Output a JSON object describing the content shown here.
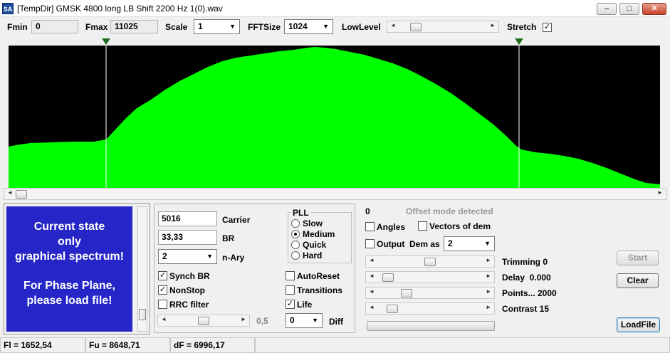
{
  "window": {
    "app_icon": "SA",
    "title": "[TempDir] GMSK 4800 long LB Shift 2200 Hz 1(0).wav",
    "min_glyph": "–",
    "max_glyph": "□",
    "close_glyph": "✕"
  },
  "toolbar": {
    "fmin_label": "Fmin",
    "fmin_value": "0",
    "fmax_label": "Fmax",
    "fmax_value": "11025",
    "scale_label": "Scale",
    "scale_value": "1",
    "fftsize_label": "FFTSize",
    "fftsize_value": "1024",
    "lowlevel_label": "LowLevel",
    "lowlevel_level": 0.15,
    "stretch_label": "Stretch",
    "stretch_checked": true
  },
  "spectrum": {
    "fill_color": "#00ff00",
    "background": "#000000",
    "marker_color": "#1a6b1a",
    "hscroll_level": 0.0
  },
  "banner": {
    "line1": "Current state",
    "line2": "only",
    "line3": "graphical spectrum!",
    "line4": "For Phase Plane,",
    "line5": "please load file!",
    "bg_color": "#2626c8"
  },
  "params": {
    "carrier_value": "5016",
    "carrier_label": "Carrier",
    "br_value": "33,33",
    "br_label": "BR",
    "nary_value": "2",
    "nary_label": "n-Ary",
    "synch_br_label": "Synch BR",
    "synch_br_checked": true,
    "nonstop_label": "NonStop",
    "nonstop_checked": true,
    "rrc_label": "RRC filter",
    "rrc_checked": false,
    "slider_value": "0,5",
    "slider_level": 0.5
  },
  "pll": {
    "title": "PLL",
    "options": [
      "Slow",
      "Medium",
      "Quick",
      "Hard"
    ],
    "selected": "Medium"
  },
  "opts": {
    "autoreset_label": "AutoReset",
    "autoreset_checked": false,
    "transitions_label": "Transitions",
    "transitions_checked": false,
    "life_label": "Life",
    "life_checked": true,
    "diff_value": "0",
    "diff_label": "Diff"
  },
  "demod": {
    "count": "0",
    "offset_status": "Offset mode detected",
    "angles_label": "Angles",
    "angles_checked": false,
    "vectors_label": "Vectors of dem",
    "vectors_checked": false,
    "output_label": "Output  Dem as",
    "output_checked": false,
    "output_value": "2",
    "trimming_label": "Trimming 0",
    "trimming_level": 0.5,
    "delay_label": "Delay  0.000",
    "delay_level": 0.05,
    "points_label": "Points... 2000",
    "points_level": 0.25,
    "contrast_label": "Contrast 15",
    "contrast_level": 0.1
  },
  "buttons": {
    "start": "Start",
    "clear": "Clear",
    "loadfile": "LoadFile"
  },
  "status": {
    "fl": "Fl = 1652,54",
    "fu": "Fu = 8648,71",
    "df": "dF = 6996,17"
  }
}
